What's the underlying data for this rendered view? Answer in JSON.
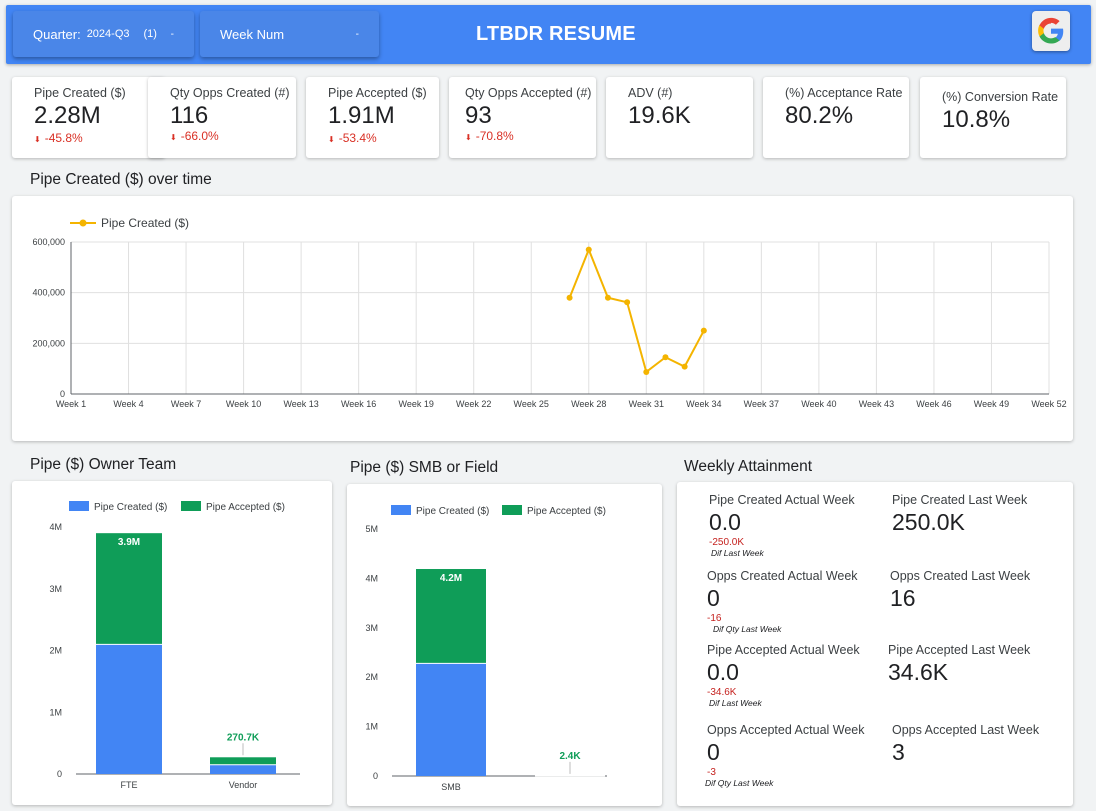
{
  "header": {
    "title": "LTBDR RESUME",
    "logo_icon": "google-g-logo",
    "filters": [
      {
        "label": "Quarter:",
        "value": "2024-Q3",
        "count": "(1)",
        "caret": "-"
      },
      {
        "label": "Week Num",
        "value": "",
        "count": "",
        "caret": "-"
      }
    ]
  },
  "kpis": [
    {
      "label": "Pipe Created ($)",
      "value": "2.28M",
      "delta": "-45.8%"
    },
    {
      "label": "Qty Opps Created (#)",
      "value": "116",
      "delta": "-66.0%"
    },
    {
      "label": "Pipe Accepted ($)",
      "value": "1.91M",
      "delta": "-53.4%"
    },
    {
      "label": "Qty Opps Accepted (#)",
      "value": "93",
      "delta": "-70.8%"
    },
    {
      "label": "ADV (#)",
      "value": "19.6K",
      "delta": ""
    },
    {
      "label": "(%) Acceptance Rate",
      "value": "80.2%",
      "delta": ""
    },
    {
      "label": "(%) Conversion Rate",
      "value": "10.8%",
      "delta": ""
    }
  ],
  "sections": {
    "pipe_over_time": "Pipe Created ($) over time",
    "owner_team": "Pipe ($) Owner Team",
    "smb_field": "Pipe ($) SMB or Field",
    "weekly_attainment": "Weekly Attainment"
  },
  "colors": {
    "blue": "#4285f4",
    "green": "#0f9d58",
    "line": "#f4b400",
    "red": "#d93025"
  },
  "chart_data": [
    {
      "type": "line",
      "title": "Pipe Created ($) over time",
      "series": [
        {
          "name": "Pipe Created ($)",
          "x": [
            "Week 27",
            "Week 28",
            "Week 29",
            "Week 30",
            "Week 31",
            "Week 32",
            "Week 33",
            "Week 34"
          ],
          "values": [
            380000,
            570000,
            380000,
            362000,
            87000,
            145000,
            108000,
            250000
          ]
        }
      ],
      "x_ticks": [
        "Week 1",
        "Week 4",
        "Week 7",
        "Week 10",
        "Week 13",
        "Week 16",
        "Week 19",
        "Week 22",
        "Week 25",
        "Week 28",
        "Week 31",
        "Week 34",
        "Week 37",
        "Week 40",
        "Week 43",
        "Week 46",
        "Week 49",
        "Week 52"
      ],
      "y_ticks": [
        "0",
        "200,000",
        "400,000",
        "600,000"
      ],
      "ylim": [
        0,
        600000
      ],
      "grid": true,
      "legend": "top-left"
    },
    {
      "type": "bar",
      "stacked": true,
      "title": "Pipe ($) Owner Team",
      "categories": [
        "FTE",
        "Vendor"
      ],
      "series": [
        {
          "name": "Pipe Created ($)",
          "values": [
            2100000,
            150000
          ]
        },
        {
          "name": "Pipe Accepted ($)",
          "values": [
            1800000,
            120700
          ]
        }
      ],
      "totals_labels": [
        "3.9M",
        "270.7K"
      ],
      "y_ticks": [
        "0",
        "1M",
        "2M",
        "3M",
        "4M"
      ],
      "ylim": [
        0,
        4000000
      ],
      "legend": "top"
    },
    {
      "type": "bar",
      "stacked": true,
      "title": "Pipe ($) SMB or Field",
      "categories": [
        "SMB",
        ""
      ],
      "series": [
        {
          "name": "Pipe Created ($)",
          "values": [
            2280000,
            1500
          ]
        },
        {
          "name": "Pipe Accepted ($)",
          "values": [
            1910000,
            900
          ]
        }
      ],
      "totals_labels": [
        "4.2M",
        "2.4K"
      ],
      "y_ticks": [
        "0",
        "1M",
        "2M",
        "3M",
        "4M",
        "5M"
      ],
      "ylim": [
        0,
        5000000
      ],
      "legend": "top"
    }
  ],
  "weekly_attainment": [
    {
      "label": "Pipe Created Actual Week",
      "value": "0.0",
      "diff": "-250.0K",
      "note": "Dif Last Week"
    },
    {
      "label": "Pipe Created Last Week",
      "value": "250.0K"
    },
    {
      "label": "Opps Created Actual Week",
      "value": "0",
      "diff": "-16",
      "note": "Dif Qty Last Week"
    },
    {
      "label": "Opps Created Last Week",
      "value": "16"
    },
    {
      "label": "Pipe Accepted Actual Week",
      "value": "0.0",
      "diff": "-34.6K",
      "note": "Dif Last Week"
    },
    {
      "label": "Pipe Accepted Last Week",
      "value": "34.6K"
    },
    {
      "label": "Opps Accepted Actual Week",
      "value": "0",
      "diff": "-3",
      "note": "Dif Qty Last Week"
    },
    {
      "label": "Opps Accepted Last Week",
      "value": "3"
    }
  ]
}
